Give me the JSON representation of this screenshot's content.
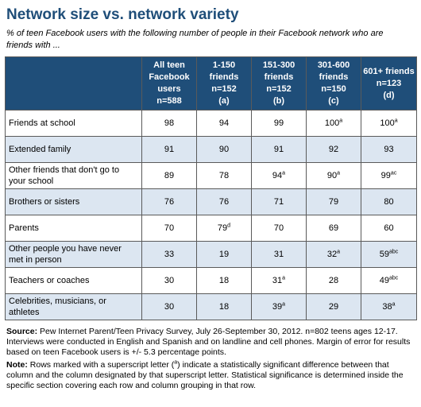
{
  "title": "Network size vs. network variety",
  "subtitle": "% of teen Facebook users with the following number of people in their Facebook network who are friends with ...",
  "chart_data": {
    "type": "table",
    "columns": [
      {
        "name": "All teen Facebook users",
        "n": "n=588",
        "letter": ""
      },
      {
        "name": "1-150 friends",
        "n": "n=152",
        "letter": "(a)"
      },
      {
        "name": "151-300 friends",
        "n": "n=152",
        "letter": "(b)"
      },
      {
        "name": "301-600 friends",
        "n": "n=150",
        "letter": "(c)"
      },
      {
        "name": "601+ friends",
        "n": "n=123",
        "letter": "(d)"
      }
    ],
    "rows": [
      {
        "label": "Friends at school",
        "values": [
          98,
          94,
          99,
          100,
          100
        ],
        "sup": [
          "",
          "",
          "",
          "a",
          "a"
        ]
      },
      {
        "label": "Extended family",
        "values": [
          91,
          90,
          91,
          92,
          93
        ],
        "sup": [
          "",
          "",
          "",
          "",
          ""
        ]
      },
      {
        "label": "Other friends that don't go to your school",
        "values": [
          89,
          78,
          94,
          90,
          99
        ],
        "sup": [
          "",
          "",
          "a",
          "a",
          "ac"
        ]
      },
      {
        "label": "Brothers or sisters",
        "values": [
          76,
          76,
          71,
          79,
          80
        ],
        "sup": [
          "",
          "",
          "",
          "",
          ""
        ]
      },
      {
        "label": "Parents",
        "values": [
          70,
          79,
          70,
          69,
          60
        ],
        "sup": [
          "",
          "d",
          "",
          "",
          ""
        ]
      },
      {
        "label": "Other people you have never met in person",
        "values": [
          33,
          19,
          31,
          32,
          59
        ],
        "sup": [
          "",
          "",
          "",
          "a",
          "abc"
        ]
      },
      {
        "label": "Teachers or coaches",
        "values": [
          30,
          18,
          31,
          28,
          49
        ],
        "sup": [
          "",
          "",
          "a",
          "",
          "abc"
        ]
      },
      {
        "label": "Celebrities, musicians, or athletes",
        "values": [
          30,
          18,
          39,
          29,
          38
        ],
        "sup": [
          "",
          "",
          "a",
          "",
          "a"
        ]
      }
    ]
  },
  "source": {
    "label": "Source:",
    "text": "Pew Internet Parent/Teen Privacy Survey, July 26-September 30, 2012. n=802 teens ages 12-17. Interviews were conducted in English and Spanish and on landline and cell phones. Margin of error for results based on teen Facebook users is +/- 5.3 percentage points."
  },
  "note": {
    "label": "Note:",
    "text_before": "Rows marked with a superscript letter (",
    "sup_letter": "a",
    "text_after": ") indicate a statistically significant difference between that column and the column designated by that superscript letter. Statistical significance is determined inside the specific section covering each row and column grouping in that row."
  }
}
